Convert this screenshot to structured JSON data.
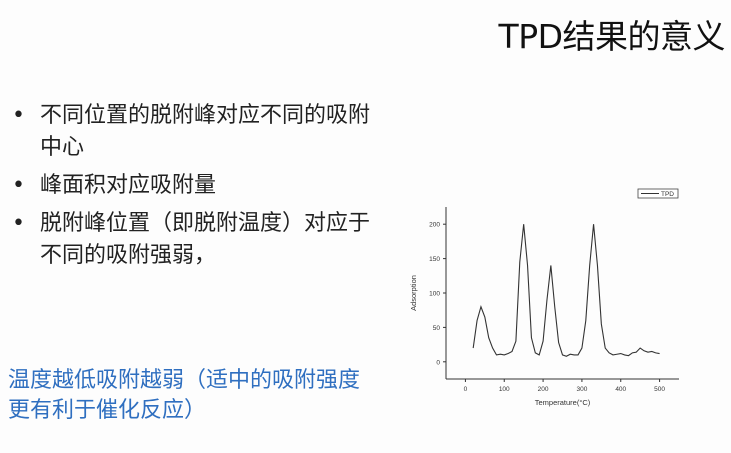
{
  "slide": {
    "title": "TPD结果的意义",
    "bullets": [
      "不同位置的脱附峰对应不同的吸附中心",
      "峰面积对应吸附量",
      "脱附峰位置（即脱附温度）对应于不同的吸附强弱，"
    ],
    "note": "温度越低吸附越弱（适中的吸附强度更有利于催化反应）",
    "note_color": "#2f6fc0"
  },
  "chart_data": {
    "type": "line",
    "title": "",
    "xlabel": "Temperature(°C)",
    "ylabel": "Adsorption",
    "xlim": [
      -50,
      550
    ],
    "ylim": [
      -25,
      225
    ],
    "xticks": [
      0,
      100,
      200,
      300,
      400,
      500
    ],
    "yticks": [
      0,
      50,
      100,
      150,
      200
    ],
    "legend": "top-right",
    "grid": false,
    "series": [
      {
        "name": "TPD",
        "x": [
          20,
          30,
          40,
          50,
          60,
          70,
          80,
          90,
          100,
          110,
          120,
          130,
          140,
          150,
          160,
          170,
          180,
          190,
          200,
          210,
          220,
          230,
          240,
          250,
          260,
          270,
          280,
          290,
          300,
          310,
          320,
          330,
          340,
          350,
          360,
          370,
          380,
          390,
          400,
          410,
          420,
          430,
          440,
          450,
          460,
          470,
          480,
          490,
          500
        ],
        "y": [
          20,
          60,
          80,
          65,
          35,
          20,
          10,
          11,
          10,
          12,
          15,
          30,
          145,
          200,
          140,
          35,
          13,
          10,
          30,
          90,
          140,
          80,
          28,
          10,
          8,
          11,
          10,
          10,
          20,
          60,
          140,
          200,
          140,
          55,
          20,
          13,
          10,
          11,
          12,
          10,
          9,
          13,
          14,
          20,
          16,
          14,
          15,
          13,
          12
        ]
      }
    ]
  }
}
